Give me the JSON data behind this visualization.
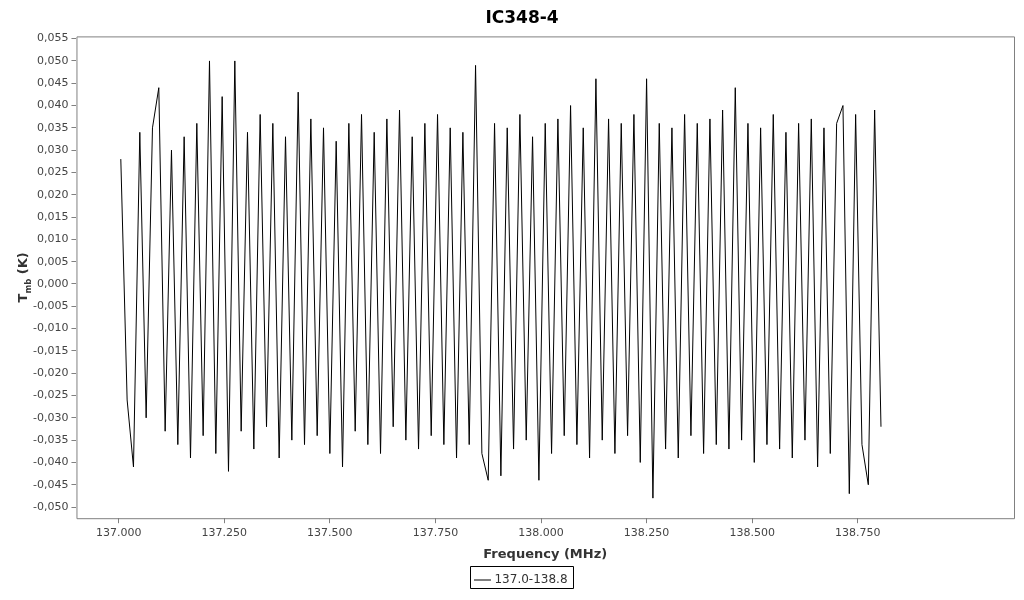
{
  "chart_data": {
    "type": "line",
    "title": "IC348-4",
    "xlabel": "Frequency (MHz)",
    "ylabel": "T$_{mb}$ (K)",
    "xlim": [
      136900,
      139120
    ],
    "xticks": [
      {
        "value": 137000,
        "label": "137.000"
      },
      {
        "value": 137250,
        "label": "137.250"
      },
      {
        "value": 137500,
        "label": "137.500"
      },
      {
        "value": 137750,
        "label": "137.750"
      },
      {
        "value": 138000,
        "label": "138.000"
      },
      {
        "value": 138250,
        "label": "138.250"
      },
      {
        "value": 138500,
        "label": "138.500"
      },
      {
        "value": 138750,
        "label": "138.750"
      }
    ],
    "ylim": [
      -0.0525,
      0.0555
    ],
    "yticks": [
      {
        "value": -0.05,
        "label": "-0,050"
      },
      {
        "value": -0.045,
        "label": "-0,045"
      },
      {
        "value": -0.04,
        "label": "-0,040"
      },
      {
        "value": -0.035,
        "label": "-0,035"
      },
      {
        "value": -0.03,
        "label": "-0,030"
      },
      {
        "value": -0.025,
        "label": "-0,025"
      },
      {
        "value": -0.02,
        "label": "-0,020"
      },
      {
        "value": -0.015,
        "label": "-0,015"
      },
      {
        "value": -0.01,
        "label": "-0,010"
      },
      {
        "value": -0.005,
        "label": "-0,005"
      },
      {
        "value": 0,
        "label": "0,000"
      },
      {
        "value": 0.005,
        "label": "0,005"
      },
      {
        "value": 0.01,
        "label": "0,010"
      },
      {
        "value": 0.015,
        "label": "0,015"
      },
      {
        "value": 0.02,
        "label": "0,020"
      },
      {
        "value": 0.025,
        "label": "0,025"
      },
      {
        "value": 0.03,
        "label": "0,030"
      },
      {
        "value": 0.035,
        "label": "0,035"
      },
      {
        "value": 0.04,
        "label": "0,040"
      },
      {
        "value": 0.045,
        "label": "0,045"
      },
      {
        "value": 0.05,
        "label": "0,050"
      },
      {
        "value": 0.055,
        "label": "0,055"
      }
    ],
    "grid": false,
    "legend": "bottom",
    "marker": "none",
    "line_style": "solid",
    "series": [
      {
        "name": "137.0-138.8",
        "color": "#000000",
        "x": [
          137005,
          137020,
          137035,
          137050,
          137065,
          137080,
          137095,
          137110,
          137125,
          137140,
          137155,
          137170,
          137185,
          137200,
          137215,
          137230,
          137245,
          137260,
          137275,
          137290,
          137305,
          137320,
          137335,
          137350,
          137365,
          137380,
          137395,
          137410,
          137425,
          137440,
          137455,
          137470,
          137485,
          137500,
          137515,
          137530,
          137545,
          137560,
          137575,
          137590,
          137605,
          137620,
          137635,
          137650,
          137665,
          137680,
          137695,
          137710,
          137725,
          137740,
          137755,
          137770,
          137785,
          137800,
          137815,
          137830,
          137845,
          137860,
          137875,
          137890,
          137905,
          137920,
          137935,
          137950,
          137965,
          137980,
          137995,
          138010,
          138025,
          138040,
          138055,
          138070,
          138085,
          138100,
          138115,
          138130,
          138145,
          138160,
          138175,
          138190,
          138205,
          138220,
          138235,
          138250,
          138265,
          138280,
          138295,
          138310,
          138325,
          138340,
          138355,
          138370,
          138385,
          138400,
          138415,
          138430,
          138445,
          138460,
          138475,
          138490,
          138505,
          138520,
          138535,
          138550,
          138565,
          138580,
          138595,
          138610,
          138625,
          138640,
          138655,
          138670,
          138685,
          138700,
          138715,
          138730,
          138745,
          138760,
          138775,
          138790,
          138805
        ],
        "values": [
          0.028,
          -0.026,
          -0.041,
          0.034,
          -0.03,
          0.035,
          0.044,
          -0.033,
          0.03,
          -0.036,
          0.033,
          -0.039,
          0.036,
          -0.034,
          0.05,
          -0.038,
          0.042,
          -0.042,
          0.05,
          -0.033,
          0.034,
          -0.037,
          0.038,
          -0.032,
          0.036,
          -0.039,
          0.033,
          -0.035,
          0.043,
          -0.036,
          0.037,
          -0.034,
          0.035,
          -0.038,
          0.032,
          -0.041,
          0.036,
          -0.033,
          0.038,
          -0.036,
          0.034,
          -0.038,
          0.037,
          -0.032,
          0.039,
          -0.035,
          0.033,
          -0.037,
          0.036,
          -0.034,
          0.038,
          -0.036,
          0.035,
          -0.039,
          0.034,
          -0.036,
          0.049,
          -0.038,
          -0.044,
          0.036,
          -0.043,
          0.035,
          -0.037,
          0.038,
          -0.035,
          0.033,
          -0.044,
          0.036,
          -0.038,
          0.037,
          -0.034,
          0.04,
          -0.036,
          0.035,
          -0.039,
          0.046,
          -0.035,
          0.037,
          -0.038,
          0.036,
          -0.034,
          0.038,
          -0.04,
          0.046,
          -0.048,
          0.036,
          -0.037,
          0.035,
          -0.039,
          0.038,
          -0.034,
          0.036,
          -0.038,
          0.037,
          -0.036,
          0.039,
          -0.037,
          0.044,
          -0.035,
          0.036,
          -0.04,
          0.035,
          -0.036,
          0.038,
          -0.037,
          0.034,
          -0.039,
          0.036,
          -0.035,
          0.037,
          -0.041,
          0.035,
          -0.038,
          0.036,
          0.04,
          -0.047,
          0.038,
          -0.036,
          -0.045,
          0.039,
          -0.032
        ]
      }
    ]
  }
}
